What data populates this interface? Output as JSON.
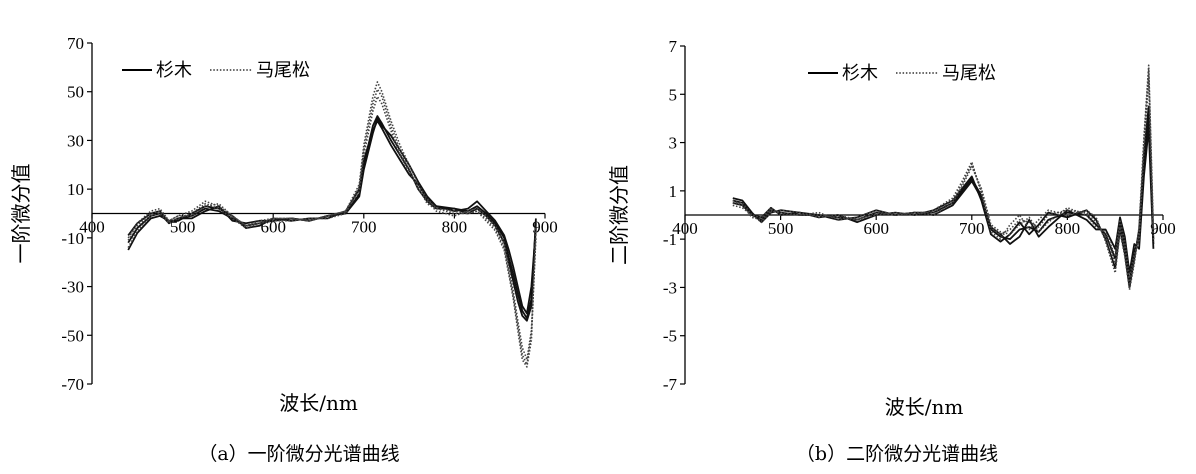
{
  "chart_data": [
    {
      "type": "line",
      "caption": "（a）一阶微分光谱曲线",
      "xlabel": "波长/nm",
      "ylabel": "一阶微分值",
      "xlim": [
        400,
        900
      ],
      "ylim": [
        -70,
        70
      ],
      "xticks": [
        "400",
        "500",
        "600",
        "700",
        "800",
        "900"
      ],
      "yticks": [
        "70",
        "50",
        "30",
        "10",
        "-10",
        "-30",
        "-50",
        "-70"
      ],
      "legend_position": "top-left",
      "legend": [
        {
          "label": "杉木",
          "style": "solid"
        },
        {
          "label": "马尾松",
          "style": "dotted"
        }
      ],
      "series": [
        {
          "name": "杉木",
          "style": "solid",
          "x": [
            440,
            450,
            465,
            475,
            485,
            495,
            510,
            525,
            540,
            555,
            570,
            585,
            600,
            620,
            640,
            660,
            680,
            695,
            700,
            710,
            715,
            720,
            730,
            740,
            750,
            760,
            770,
            780,
            800,
            815,
            825,
            835,
            845,
            855,
            860,
            865,
            870,
            875,
            880,
            885,
            890
          ],
          "y": [
            -12,
            -6,
            -1,
            0,
            -4,
            -2,
            -1,
            2,
            1,
            -2,
            -5,
            -4,
            -3,
            -2,
            -3,
            -1,
            0,
            8,
            20,
            36,
            40,
            37,
            30,
            24,
            18,
            10,
            5,
            2,
            2,
            1,
            3,
            0,
            -4,
            -10,
            -18,
            -25,
            -33,
            -40,
            -43,
            -35,
            -4
          ]
        },
        {
          "name": "杉木",
          "style": "solid",
          "x": [
            440,
            450,
            465,
            475,
            485,
            495,
            510,
            525,
            540,
            555,
            570,
            585,
            600,
            620,
            640,
            660,
            680,
            695,
            700,
            710,
            715,
            720,
            730,
            740,
            750,
            760,
            770,
            780,
            800,
            815,
            825,
            835,
            845,
            855,
            860,
            865,
            870,
            875,
            880,
            885,
            890
          ],
          "y": [
            -15,
            -8,
            -2,
            -1,
            -3,
            -3,
            0,
            3,
            2,
            -1,
            -6,
            -5,
            -2,
            -3,
            -2,
            -2,
            1,
            10,
            22,
            34,
            38,
            35,
            28,
            22,
            16,
            12,
            6,
            3,
            1,
            2,
            5,
            1,
            -3,
            -9,
            -15,
            -22,
            -30,
            -38,
            -41,
            -30,
            -6
          ]
        },
        {
          "name": "杉木",
          "style": "solid",
          "x": [
            440,
            450,
            465,
            475,
            485,
            495,
            510,
            525,
            540,
            555,
            570,
            585,
            600,
            620,
            640,
            660,
            680,
            695,
            700,
            710,
            715,
            720,
            730,
            740,
            750,
            760,
            770,
            780,
            800,
            815,
            825,
            835,
            845,
            855,
            860,
            865,
            870,
            875,
            880,
            885,
            890
          ],
          "y": [
            -9,
            -4,
            0,
            1,
            -4,
            -2,
            -2,
            1,
            3,
            -3,
            -4,
            -3,
            -3,
            -2,
            -3,
            -1,
            0,
            7,
            18,
            33,
            39,
            36,
            32,
            26,
            20,
            13,
            7,
            3,
            2,
            0,
            2,
            -1,
            -5,
            -12,
            -20,
            -28,
            -36,
            -42,
            -44,
            -38,
            -2
          ]
        },
        {
          "name": "马尾松",
          "style": "dotted",
          "x": [
            440,
            450,
            465,
            475,
            485,
            495,
            510,
            525,
            540,
            555,
            570,
            585,
            600,
            620,
            640,
            660,
            680,
            695,
            700,
            710,
            715,
            720,
            730,
            740,
            750,
            760,
            770,
            780,
            800,
            815,
            825,
            835,
            845,
            855,
            860,
            865,
            870,
            875,
            880,
            885,
            890
          ],
          "y": [
            -11,
            -5,
            0,
            1,
            -3,
            -1,
            1,
            5,
            3,
            -1,
            -5,
            -4,
            -2,
            -2,
            -3,
            -1,
            1,
            12,
            28,
            48,
            54,
            50,
            38,
            28,
            20,
            12,
            6,
            2,
            0,
            0,
            1,
            -2,
            -6,
            -14,
            -24,
            -34,
            -46,
            -58,
            -62,
            -50,
            -8
          ]
        },
        {
          "name": "马尾松",
          "style": "dotted",
          "x": [
            440,
            450,
            465,
            475,
            485,
            495,
            510,
            525,
            540,
            555,
            570,
            585,
            600,
            620,
            640,
            660,
            680,
            695,
            700,
            710,
            715,
            720,
            730,
            740,
            750,
            760,
            770,
            780,
            800,
            815,
            825,
            835,
            845,
            855,
            860,
            865,
            870,
            875,
            880,
            885,
            890
          ],
          "y": [
            -14,
            -7,
            -1,
            0,
            -4,
            -2,
            0,
            4,
            2,
            -2,
            -6,
            -4,
            -3,
            -3,
            -2,
            -2,
            0,
            11,
            26,
            45,
            51,
            48,
            36,
            26,
            18,
            10,
            5,
            1,
            -1,
            1,
            2,
            -1,
            -5,
            -12,
            -22,
            -32,
            -44,
            -55,
            -60,
            -48,
            -10
          ]
        },
        {
          "name": "马尾松",
          "style": "dotted",
          "x": [
            440,
            450,
            465,
            475,
            485,
            495,
            510,
            525,
            540,
            555,
            570,
            585,
            600,
            620,
            640,
            660,
            680,
            695,
            700,
            710,
            715,
            720,
            730,
            740,
            750,
            760,
            770,
            780,
            800,
            815,
            825,
            835,
            845,
            855,
            860,
            865,
            870,
            875,
            880,
            885,
            890
          ],
          "y": [
            -10,
            -4,
            1,
            2,
            -3,
            -1,
            -1,
            3,
            4,
            -1,
            -5,
            -3,
            -2,
            -2,
            -3,
            -1,
            1,
            9,
            24,
            42,
            48,
            45,
            34,
            24,
            17,
            11,
            4,
            2,
            1,
            0,
            1,
            -3,
            -7,
            -15,
            -25,
            -35,
            -48,
            -60,
            -63,
            -52,
            -6
          ]
        }
      ]
    },
    {
      "type": "line",
      "caption": "（b）二阶微分光谱曲线",
      "xlabel": "波长/nm",
      "ylabel": "二阶微分值",
      "xlim": [
        400,
        900
      ],
      "ylim": [
        -7,
        7
      ],
      "xticks": [
        "400",
        "500",
        "600",
        "700",
        "800",
        "900"
      ],
      "yticks": [
        "7",
        "5",
        "3",
        "1",
        "-1",
        "-3",
        "-5",
        "-7"
      ],
      "legend_position": "top-center",
      "legend": [
        {
          "label": "杉木",
          "style": "solid"
        },
        {
          "label": "马尾松",
          "style": "dotted"
        }
      ],
      "series": [
        {
          "name": "杉木",
          "style": "solid",
          "x": [
            450,
            460,
            470,
            480,
            490,
            500,
            520,
            540,
            560,
            580,
            600,
            620,
            640,
            660,
            680,
            690,
            700,
            710,
            720,
            730,
            740,
            750,
            760,
            770,
            780,
            800,
            820,
            830,
            840,
            850,
            855,
            860,
            865,
            870,
            875,
            880,
            885,
            890
          ],
          "y": [
            0.6,
            0.5,
            0.0,
            -0.2,
            0.2,
            0.1,
            0.0,
            0.0,
            -0.1,
            -0.2,
            0.1,
            0.0,
            0.1,
            0.1,
            0.5,
            1.0,
            1.5,
            0.8,
            -0.6,
            -0.9,
            -1.0,
            -0.6,
            -0.5,
            -0.7,
            -0.2,
            0.1,
            0.0,
            -0.4,
            -0.8,
            -1.8,
            -0.3,
            -1.2,
            -2.8,
            -1.5,
            -1.0,
            2.0,
            4.0,
            -1.2
          ]
        },
        {
          "name": "杉木",
          "style": "solid",
          "x": [
            450,
            460,
            470,
            480,
            490,
            500,
            520,
            540,
            560,
            580,
            600,
            620,
            640,
            660,
            680,
            690,
            700,
            710,
            720,
            730,
            740,
            750,
            760,
            770,
            780,
            800,
            820,
            830,
            840,
            850,
            855,
            860,
            865,
            870,
            875,
            880,
            885,
            890
          ],
          "y": [
            0.7,
            0.6,
            0.1,
            -0.3,
            0.1,
            0.2,
            0.1,
            -0.1,
            0.0,
            -0.3,
            0.0,
            0.1,
            0.0,
            0.2,
            0.6,
            1.1,
            1.6,
            0.6,
            -0.8,
            -1.1,
            -0.8,
            -0.3,
            -0.8,
            -0.4,
            0.1,
            -0.1,
            0.2,
            -0.2,
            -1.0,
            -2.2,
            -0.6,
            -1.6,
            -3.0,
            -1.8,
            -0.6,
            2.5,
            4.5,
            -1.0
          ]
        },
        {
          "name": "杉木",
          "style": "solid",
          "x": [
            450,
            460,
            470,
            480,
            490,
            500,
            520,
            540,
            560,
            580,
            600,
            620,
            640,
            660,
            680,
            690,
            700,
            710,
            720,
            730,
            740,
            750,
            760,
            770,
            780,
            800,
            820,
            830,
            840,
            850,
            855,
            860,
            865,
            870,
            875,
            880,
            885,
            890
          ],
          "y": [
            0.5,
            0.4,
            0.0,
            -0.1,
            0.3,
            0.0,
            0.1,
            0.0,
            -0.2,
            -0.1,
            0.2,
            0.0,
            0.1,
            0.0,
            0.4,
            0.9,
            1.4,
            0.7,
            -0.5,
            -0.8,
            -1.2,
            -0.9,
            -0.2,
            -0.9,
            -0.5,
            0.2,
            -0.2,
            -0.6,
            -0.6,
            -1.4,
            -0.1,
            -0.9,
            -2.4,
            -1.2,
            -1.4,
            1.6,
            3.6,
            -1.4
          ]
        },
        {
          "name": "马尾松",
          "style": "dotted",
          "x": [
            450,
            460,
            470,
            480,
            490,
            500,
            520,
            540,
            560,
            580,
            600,
            620,
            640,
            660,
            680,
            690,
            700,
            710,
            720,
            730,
            740,
            750,
            760,
            770,
            780,
            800,
            820,
            830,
            840,
            850,
            855,
            860,
            865,
            870,
            875,
            880,
            885,
            890
          ],
          "y": [
            0.6,
            0.4,
            -0.1,
            -0.2,
            0.2,
            0.1,
            0.0,
            0.0,
            -0.1,
            -0.2,
            0.1,
            0.0,
            0.1,
            0.1,
            0.6,
            1.3,
            2.1,
            1.0,
            -0.5,
            -0.8,
            -0.6,
            -0.2,
            -0.3,
            -0.5,
            0.0,
            0.2,
            0.1,
            -0.3,
            -0.9,
            -2.0,
            -0.5,
            -1.4,
            -2.9,
            -1.9,
            -0.8,
            3.0,
            6.0,
            -0.8
          ]
        },
        {
          "name": "马尾松",
          "style": "dotted",
          "x": [
            450,
            460,
            470,
            480,
            490,
            500,
            520,
            540,
            560,
            580,
            600,
            620,
            640,
            660,
            680,
            690,
            700,
            710,
            720,
            730,
            740,
            750,
            760,
            770,
            780,
            800,
            820,
            830,
            840,
            850,
            855,
            860,
            865,
            870,
            875,
            880,
            885,
            890
          ],
          "y": [
            0.5,
            0.5,
            0.0,
            -0.3,
            0.1,
            0.2,
            0.1,
            -0.1,
            0.0,
            -0.2,
            0.0,
            0.1,
            0.0,
            0.2,
            0.7,
            1.4,
            2.2,
            0.9,
            -0.7,
            -1.0,
            -0.4,
            0.0,
            -0.6,
            -0.2,
            0.2,
            0.0,
            0.2,
            -0.1,
            -1.1,
            -2.4,
            -0.7,
            -1.7,
            -3.1,
            -2.0,
            -0.5,
            3.2,
            6.2,
            -0.6
          ]
        },
        {
          "name": "马尾松",
          "style": "dotted",
          "x": [
            450,
            460,
            470,
            480,
            490,
            500,
            520,
            540,
            560,
            580,
            600,
            620,
            640,
            660,
            680,
            690,
            700,
            710,
            720,
            730,
            740,
            750,
            760,
            770,
            780,
            800,
            820,
            830,
            840,
            850,
            855,
            860,
            865,
            870,
            875,
            880,
            885,
            890
          ],
          "y": [
            0.4,
            0.3,
            0.0,
            -0.1,
            0.3,
            0.0,
            0.0,
            0.1,
            -0.2,
            -0.1,
            0.2,
            0.0,
            0.1,
            0.0,
            0.5,
            1.2,
            2.0,
            1.1,
            -0.4,
            -0.7,
            -0.8,
            -0.4,
            -0.1,
            -0.7,
            -0.3,
            0.3,
            0.0,
            -0.5,
            -0.7,
            -1.7,
            -0.2,
            -1.1,
            -2.6,
            -1.6,
            -1.1,
            2.7,
            5.6,
            -1.1
          ]
        }
      ]
    }
  ]
}
